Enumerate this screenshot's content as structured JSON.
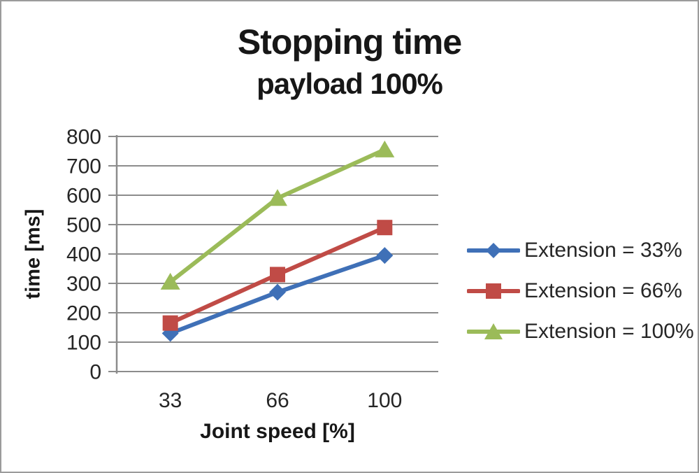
{
  "window": {
    "background": "#ffffff",
    "border_color": "#9b9b9b"
  },
  "chart_data": {
    "type": "line",
    "title": "Stopping time",
    "subtitle": "payload 100%",
    "xlabel": "Joint speed [%]",
    "ylabel": "time [ms]",
    "categories": [
      "33",
      "66",
      "100"
    ],
    "series": [
      {
        "name": "Extension = 33%",
        "marker": "diamond",
        "color": "#3F70B7",
        "values": [
          130,
          270,
          395
        ]
      },
      {
        "name": "Extension = 66%",
        "marker": "square",
        "color": "#C04B46",
        "values": [
          165,
          330,
          490
        ]
      },
      {
        "name": "Extension = 100%",
        "marker": "triangle",
        "color": "#9BBB59",
        "values": [
          305,
          590,
          755
        ]
      }
    ],
    "ylim": [
      0,
      800
    ],
    "ytick_step": 100,
    "yticks": [
      "0",
      "100",
      "200",
      "300",
      "400",
      "500",
      "600",
      "700",
      "800"
    ],
    "grid": true,
    "legend_position": "right",
    "gridline_color": "#8C8C8C",
    "axis_text_color": "#262626"
  }
}
